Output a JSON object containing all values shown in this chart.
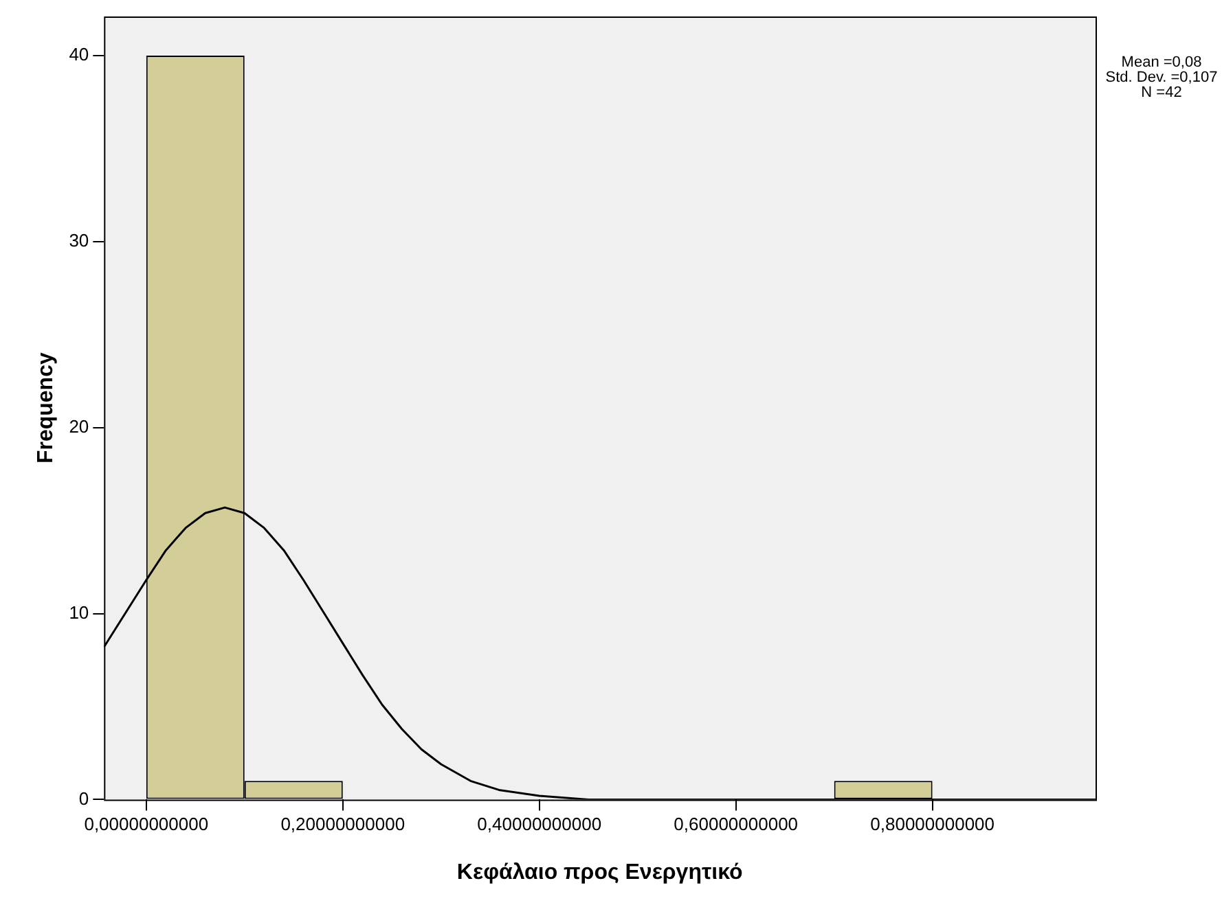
{
  "chart_data": {
    "type": "histogram",
    "xlabel": "Κεφάλαιο προς Ενεργητικό",
    "ylabel": "Frequency",
    "bins": [
      0,
      0.1,
      0.2,
      0.3,
      0.4,
      0.5,
      0.6,
      0.7,
      0.8
    ],
    "values": [
      40,
      1,
      0,
      0,
      0,
      0,
      0,
      1
    ],
    "color": "#d3ce97",
    "xlim": [
      -0.043,
      0.966
    ],
    "ylim": [
      0,
      42.1
    ],
    "xticks": [
      {
        "value": 0,
        "label": "0,00000000000"
      },
      {
        "value": 0.2,
        "label": "0,20000000000"
      },
      {
        "value": 0.4,
        "label": "0,40000000000"
      },
      {
        "value": 0.6,
        "label": "0,60000000000"
      },
      {
        "value": 0.8,
        "label": "0,80000000000"
      }
    ],
    "yticks": [
      0,
      10,
      20,
      30,
      40
    ],
    "grid": false,
    "legend": false,
    "series": [
      {
        "type": "line",
        "color": "#000000",
        "marker": "none",
        "x": [
          -0.043,
          0,
          0.02,
          0.04,
          0.06,
          0.08,
          0.1,
          0.12,
          0.14,
          0.16,
          0.18,
          0.2,
          0.22,
          0.24,
          0.26,
          0.28,
          0.3,
          0.33,
          0.36,
          0.4,
          0.45,
          0.5,
          0.6,
          0.7,
          0.8,
          0.9,
          0.966
        ],
        "values": [
          8.2,
          11.8,
          13.4,
          14.6,
          15.4,
          15.7,
          15.4,
          14.6,
          13.4,
          11.8,
          10.1,
          8.4,
          6.7,
          5.1,
          3.8,
          2.7,
          1.9,
          1.0,
          0.5,
          0.2,
          0,
          0,
          0,
          0,
          0,
          0,
          0
        ]
      }
    ],
    "annotations": [
      "Mean =0,08",
      "Std. Dev. =0,107",
      "N =42"
    ]
  }
}
